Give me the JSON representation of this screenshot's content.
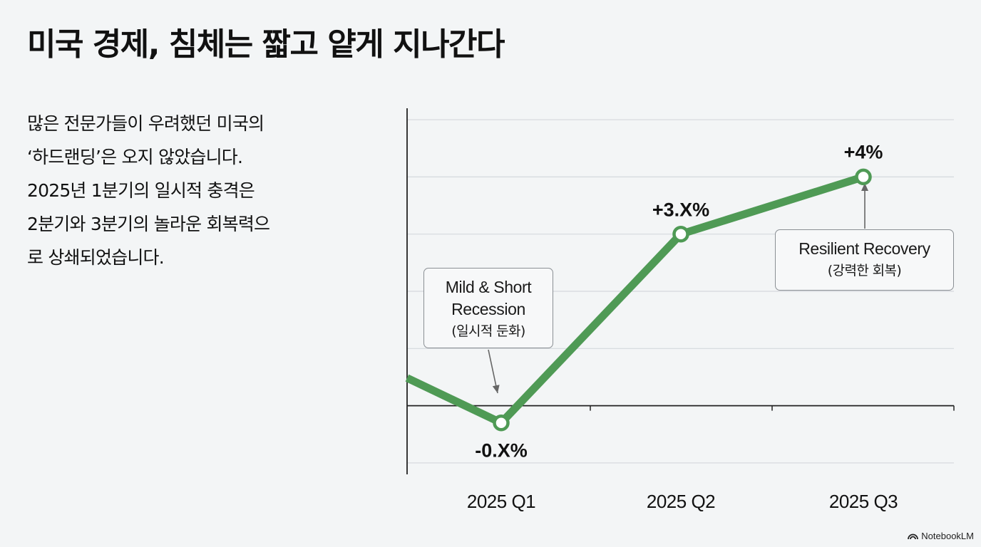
{
  "title": "미국 경제, 침체는 짧고 얕게 지나간다",
  "body_lines": [
    "많은 전문가들이 우려했던 미국의",
    "‘하드랜딩’은 오지 않았습니다.",
    "2025년 1분기의 일시적 충격은",
    "2분기와 3분기의 놀라운 회복력으",
    "로 상쇄되었습니다."
  ],
  "chart_data": {
    "type": "line",
    "categories": [
      "2025 Q1",
      "2025 Q2",
      "2025 Q3"
    ],
    "series": [
      {
        "values": [
          -0.3,
          3.0,
          4.0
        ],
        "data_labels": [
          "-0.X%",
          "+3.X%",
          "+4%"
        ],
        "color": "#4f9a55"
      }
    ],
    "ylim": [
      -1.2,
      5.2
    ],
    "grid": true,
    "annotations": [
      {
        "point_index": 0,
        "lines": [
          "Mild & Short",
          "Recession",
          "(일시적 둔화)"
        ]
      },
      {
        "point_index": 2,
        "lines": [
          "Resilient Recovery",
          "(강력한 회복)"
        ]
      }
    ]
  },
  "logo": {
    "text": "NotebookLM"
  }
}
